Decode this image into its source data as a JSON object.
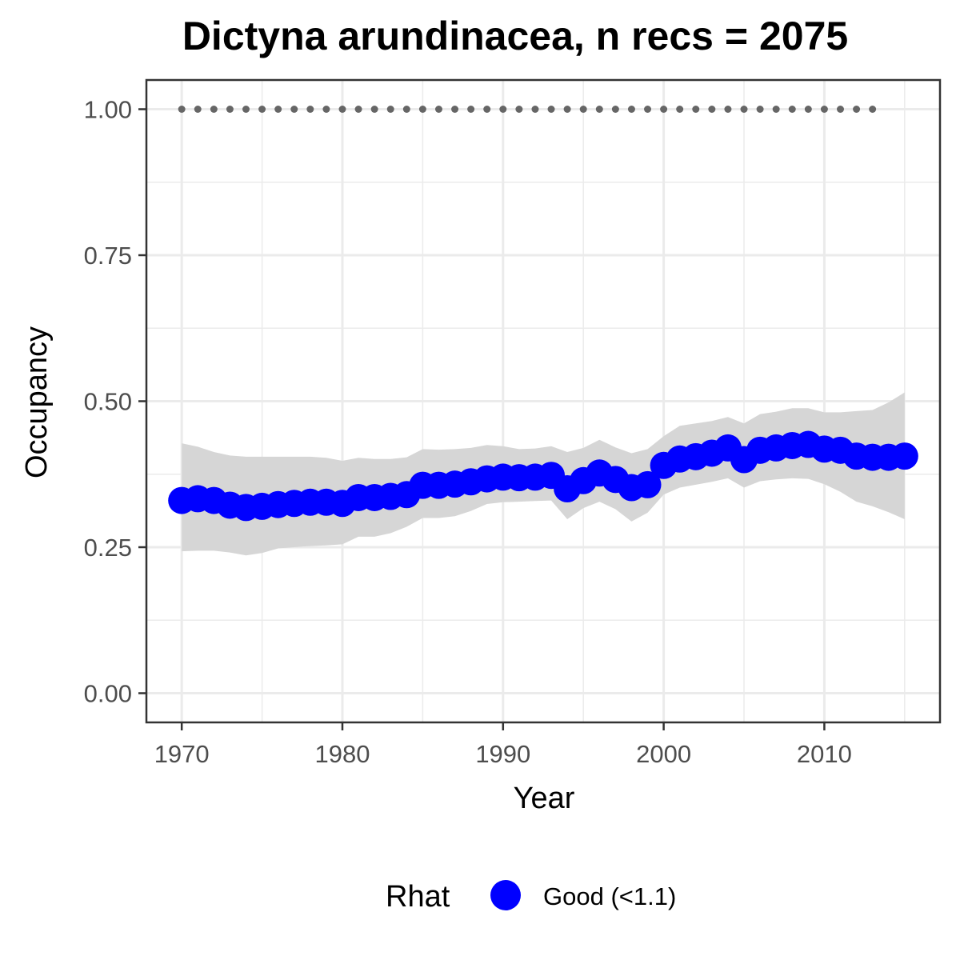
{
  "chart_data": {
    "type": "line",
    "title": "Dictyna arundinacea, n recs = 2075",
    "xlabel": "Year",
    "ylabel": "Occupancy",
    "xlim": [
      1967.8,
      2017.2
    ],
    "ylim": [
      -0.05,
      1.05
    ],
    "x_ticks": [
      1970,
      1980,
      1990,
      2000,
      2010
    ],
    "x_tick_labels": [
      "1970",
      "1980",
      "1990",
      "2000",
      "2010"
    ],
    "y_ticks": [
      0,
      0.25,
      0.5,
      0.75,
      1
    ],
    "y_tick_labels": [
      "0.00",
      "0.25",
      "0.50",
      "0.75",
      "1.00"
    ],
    "grid": true,
    "legend": {
      "position": "bottom",
      "title": "Rhat",
      "items": [
        {
          "label": "Good (<1.1)",
          "color": "#0000ff"
        }
      ]
    },
    "colors": {
      "series": "#0000ff",
      "ribbon": "#d6d6d6",
      "reference": "#666666",
      "grid": "#ebebeb",
      "border": "#333333"
    },
    "x": [
      1970,
      1971,
      1972,
      1973,
      1974,
      1975,
      1976,
      1977,
      1978,
      1979,
      1980,
      1981,
      1982,
      1983,
      1984,
      1985,
      1986,
      1987,
      1988,
      1989,
      1990,
      1991,
      1992,
      1993,
      1994,
      1995,
      1996,
      1997,
      1998,
      1999,
      2000,
      2001,
      2002,
      2003,
      2004,
      2005,
      2006,
      2007,
      2008,
      2009,
      2010,
      2011,
      2012,
      2013,
      2014,
      2015
    ],
    "series": [
      {
        "values": [
          0.33,
          0.333,
          0.33,
          0.322,
          0.318,
          0.32,
          0.323,
          0.325,
          0.327,
          0.327,
          0.325,
          0.335,
          0.335,
          0.337,
          0.34,
          0.356,
          0.356,
          0.358,
          0.362,
          0.367,
          0.37,
          0.369,
          0.37,
          0.373,
          0.35,
          0.364,
          0.377,
          0.366,
          0.352,
          0.357,
          0.39,
          0.401,
          0.405,
          0.411,
          0.42,
          0.4,
          0.416,
          0.42,
          0.424,
          0.426,
          0.418,
          0.416,
          0.406,
          0.404,
          0.404,
          0.406
        ],
        "lower": [
          0.243,
          0.244,
          0.244,
          0.241,
          0.236,
          0.24,
          0.248,
          0.25,
          0.252,
          0.253,
          0.255,
          0.268,
          0.268,
          0.274,
          0.285,
          0.3,
          0.3,
          0.303,
          0.312,
          0.324,
          0.327,
          0.328,
          0.329,
          0.33,
          0.298,
          0.317,
          0.328,
          0.315,
          0.294,
          0.309,
          0.34,
          0.352,
          0.357,
          0.362,
          0.368,
          0.352,
          0.363,
          0.366,
          0.368,
          0.367,
          0.358,
          0.345,
          0.328,
          0.32,
          0.31,
          0.298
        ],
        "upper": [
          0.428,
          0.422,
          0.413,
          0.407,
          0.405,
          0.405,
          0.405,
          0.405,
          0.405,
          0.403,
          0.398,
          0.403,
          0.401,
          0.401,
          0.404,
          0.418,
          0.417,
          0.418,
          0.42,
          0.425,
          0.423,
          0.418,
          0.419,
          0.423,
          0.413,
          0.42,
          0.434,
          0.421,
          0.411,
          0.418,
          0.44,
          0.458,
          0.462,
          0.466,
          0.473,
          0.462,
          0.478,
          0.482,
          0.488,
          0.488,
          0.481,
          0.481,
          0.483,
          0.485,
          0.498,
          0.515
        ]
      }
    ],
    "reference_line": {
      "x": [
        1970,
        1971,
        1972,
        1973,
        1974,
        1975,
        1976,
        1977,
        1978,
        1979,
        1980,
        1981,
        1982,
        1983,
        1984,
        1985,
        1986,
        1987,
        1988,
        1989,
        1990,
        1991,
        1992,
        1993,
        1994,
        1995,
        1996,
        1997,
        1998,
        1999,
        2000,
        2001,
        2002,
        2003,
        2004,
        2005,
        2006,
        2007,
        2008,
        2009,
        2010,
        2011,
        2012,
        2013
      ],
      "value": 1.0
    }
  }
}
